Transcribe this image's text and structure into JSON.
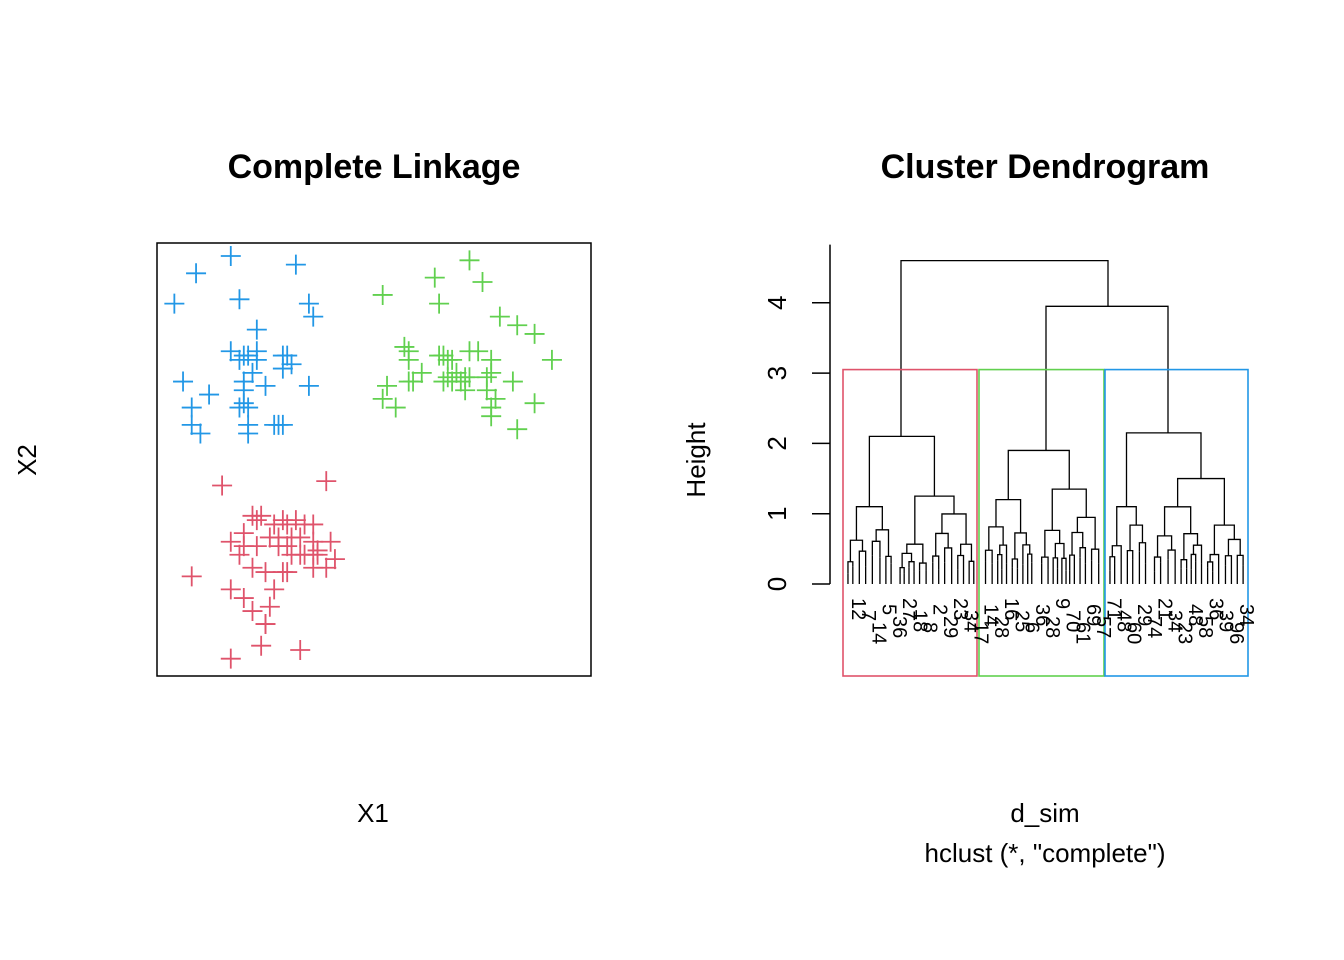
{
  "colors": {
    "cluster1": "#DF536B",
    "cluster2": "#61D04F",
    "cluster3": "#2297E6",
    "axis": "#000000"
  },
  "chart_data": [
    {
      "type": "scatter",
      "title": "Complete Linkage",
      "xlabel": "X1",
      "ylabel": "X2",
      "marker": "plus",
      "axes_ticks_shown": false,
      "xlim": [
        0,
        100
      ],
      "ylim": [
        0,
        100
      ],
      "series": [
        {
          "cluster": 1,
          "color": "#DF536B",
          "points": [
            [
              39,
              45
            ],
            [
              15,
              44
            ],
            [
              24,
              37
            ],
            [
              20,
              33
            ],
            [
              22,
              37
            ],
            [
              23,
              36
            ],
            [
              27,
              35
            ],
            [
              29,
              36
            ],
            [
              30,
              35
            ],
            [
              32,
              36
            ],
            [
              34,
              35
            ],
            [
              36,
              35
            ],
            [
              26,
              32
            ],
            [
              28,
              32
            ],
            [
              31,
              32
            ],
            [
              33,
              32
            ],
            [
              17,
              31
            ],
            [
              20,
              30
            ],
            [
              23,
              30
            ],
            [
              28,
              30
            ],
            [
              30,
              30
            ],
            [
              36,
              31
            ],
            [
              40,
              31
            ],
            [
              37,
              29
            ],
            [
              19,
              28
            ],
            [
              31,
              28
            ],
            [
              33,
              28
            ],
            [
              34,
              28
            ],
            [
              36,
              28
            ],
            [
              37,
              28
            ],
            [
              41,
              27
            ],
            [
              39,
              25
            ],
            [
              8,
              23
            ],
            [
              22,
              25
            ],
            [
              25,
              24
            ],
            [
              29,
              24
            ],
            [
              30,
              24
            ],
            [
              36,
              25
            ],
            [
              17,
              20
            ],
            [
              20,
              18
            ],
            [
              27,
              20
            ],
            [
              22,
              15
            ],
            [
              26,
              16
            ],
            [
              25,
              12
            ],
            [
              33,
              6
            ],
            [
              17,
              4
            ],
            [
              24,
              7
            ],
            [
              25,
              12
            ]
          ]
        },
        {
          "cluster": 2,
          "color": "#61D04F",
          "points": [
            [
              72,
              96
            ],
            [
              64,
              92
            ],
            [
              75,
              91
            ],
            [
              52,
              88
            ],
            [
              65,
              86
            ],
            [
              79,
              83
            ],
            [
              83,
              81
            ],
            [
              87,
              79
            ],
            [
              57,
              76
            ],
            [
              58,
              75
            ],
            [
              58,
              73
            ],
            [
              65,
              74
            ],
            [
              66,
              74
            ],
            [
              67,
              73
            ],
            [
              68,
              73
            ],
            [
              72,
              75
            ],
            [
              74,
              75
            ],
            [
              77,
              73
            ],
            [
              77,
              70
            ],
            [
              91,
              73
            ],
            [
              61,
              70
            ],
            [
              67,
              69
            ],
            [
              69,
              70
            ],
            [
              72,
              69
            ],
            [
              76,
              69
            ],
            [
              58,
              68
            ],
            [
              59,
              68
            ],
            [
              66,
              68
            ],
            [
              68,
              68
            ],
            [
              70,
              68
            ],
            [
              71,
              69
            ],
            [
              76,
              66
            ],
            [
              82,
              68
            ],
            [
              78,
              64
            ],
            [
              53,
              67
            ],
            [
              77,
              62
            ],
            [
              71,
              66
            ],
            [
              87,
              63
            ],
            [
              77,
              60
            ],
            [
              83,
              57
            ],
            [
              55,
              62
            ],
            [
              52,
              64
            ]
          ]
        },
        {
          "cluster": 3,
          "color": "#2297E6",
          "points": [
            [
              17,
              97
            ],
            [
              32,
              95
            ],
            [
              9,
              93
            ],
            [
              4,
              86
            ],
            [
              19,
              87
            ],
            [
              35,
              86
            ],
            [
              36,
              83
            ],
            [
              23,
              80
            ],
            [
              17,
              75
            ],
            [
              20,
              74
            ],
            [
              21,
              74
            ],
            [
              23,
              75
            ],
            [
              23,
              73
            ],
            [
              29,
              74
            ],
            [
              30,
              74
            ],
            [
              19,
              73
            ],
            [
              31,
              72
            ],
            [
              22,
              70
            ],
            [
              20,
              68
            ],
            [
              29,
              71
            ],
            [
              6,
              68
            ],
            [
              20,
              66
            ],
            [
              25,
              67
            ],
            [
              35,
              67
            ],
            [
              12,
              65
            ],
            [
              19,
              62
            ],
            [
              8,
              62
            ],
            [
              20,
              63
            ],
            [
              21,
              62
            ],
            [
              8,
              58
            ],
            [
              21,
              58
            ],
            [
              28,
              58
            ],
            [
              29,
              58
            ],
            [
              10,
              56
            ],
            [
              27,
              58
            ],
            [
              21,
              56
            ]
          ]
        }
      ]
    },
    {
      "type": "dendrogram",
      "title": "Cluster Dendrogram",
      "xlabel": "d_sim",
      "sublabel": "hclust (*, \"complete\")",
      "ylabel": "Height",
      "ylim": [
        0,
        4.6
      ],
      "yticks": [
        0,
        1,
        2,
        3,
        4
      ],
      "root_height": 4.6,
      "merges": [
        {
          "name": "root",
          "height": 4.6,
          "children": [
            "cluster1",
            "green-blue"
          ]
        },
        {
          "name": "green-blue",
          "height": 3.95,
          "children": [
            "cluster2",
            "cluster3"
          ]
        },
        {
          "name": "cluster1",
          "height": 2.1,
          "children": [
            "c1-left",
            "c1-right"
          ]
        },
        {
          "name": "cluster2",
          "height": 1.9,
          "children": [
            "c2-left",
            "c2-right"
          ]
        },
        {
          "name": "cluster3",
          "height": 2.15,
          "children": [
            "c3-left",
            "c3-right"
          ]
        }
      ],
      "cut_height": 3.05,
      "cluster_boxes": [
        {
          "cluster": 1,
          "color": "#DF536B"
        },
        {
          "cluster": 2,
          "color": "#61D04F"
        },
        {
          "cluster": 3,
          "color": "#2297E6"
        }
      ],
      "visible_leaf_labels": [
        "12",
        "7",
        "14",
        "5",
        "36",
        "27",
        "18",
        "8",
        "2",
        "29",
        "23",
        "34",
        "17",
        "14",
        "28",
        "16",
        "25",
        "6",
        "36",
        "28",
        "9",
        "70",
        "61",
        "69",
        "57",
        "71",
        "48",
        "60",
        "29",
        "74",
        "21",
        "34",
        "23",
        "48",
        "58",
        "36",
        "39",
        "96",
        "34"
      ]
    }
  ]
}
